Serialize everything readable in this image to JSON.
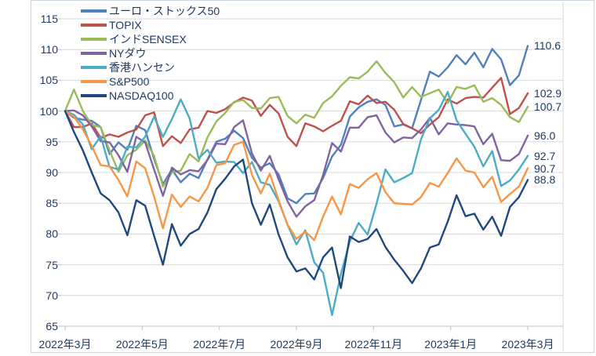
{
  "chart_data": {
    "type": "line",
    "title": "",
    "period": "2022年3月〜2023年3月",
    "index_base": 100,
    "grid": "horizontal",
    "legend_position": "top-left",
    "x_sampling": "weekly (53 points per series, estimated from pixels)",
    "x_axis": {
      "tick_labels": [
        "2022年3月",
        "2022年5月",
        "2022年7月",
        "2022年9月",
        "2022年11月",
        "2023年1月",
        "2023年3月"
      ]
    },
    "y_axis": {
      "min": 65,
      "max": 115,
      "step": 5,
      "tick_labels": [
        "115",
        "110",
        "105",
        "100",
        "95",
        "90",
        "85",
        "80",
        "75",
        "70",
        "65"
      ]
    },
    "series": [
      {
        "name": "ユーロ・ストックス50",
        "color": "#4F81BD",
        "end_label": "110.6",
        "values": [
          100,
          98.9,
          98.6,
          98.4,
          97.4,
          93.0,
          94.9,
          93.7,
          97.6,
          96.9,
          92.2,
          88.1,
          90.5,
          88.4,
          89.8,
          89.1,
          92.1,
          95.0,
          95.5,
          96.8,
          95.6,
          92.4,
          90.8,
          91.5,
          89.7,
          85.8,
          85.0,
          86.5,
          86.6,
          89.1,
          92.6,
          94.5,
          99.1,
          100.6,
          101.5,
          101.9,
          101.0,
          97.5,
          97.8,
          97.2,
          101.8,
          106.4,
          105.6,
          107.1,
          109.1,
          107.6,
          109.5,
          107.1,
          110.1,
          108.4,
          104.2,
          105.8,
          110.6
        ]
      },
      {
        "name": "TOPIX",
        "color": "#C0504D",
        "end_label": "102.9",
        "values": [
          100,
          97.4,
          97.4,
          98.0,
          95.6,
          96.2,
          95.8,
          96.5,
          97.0,
          99.3,
          99.8,
          94.3,
          95.9,
          94.8,
          97.0,
          97.3,
          100.0,
          99.7,
          100.3,
          101.4,
          102.2,
          101.7,
          99.2,
          101.0,
          99.6,
          95.8,
          94.3,
          98.0,
          97.5,
          96.7,
          97.6,
          98.4,
          101.6,
          101.1,
          102.5,
          101.3,
          101.5,
          100.2,
          97.9,
          97.2,
          96.4,
          97.8,
          99.0,
          101.9,
          101.2,
          102.1,
          102.3,
          102.2,
          103.8,
          105.4,
          99.5,
          100.5,
          102.9
        ]
      },
      {
        "name": "インドSENSEX",
        "color": "#9BBB59",
        "end_label": "100.7",
        "values": [
          100,
          103.5,
          100.0,
          97.7,
          97.4,
          93.6,
          90.1,
          92.8,
          93.7,
          95.2,
          92.7,
          87.7,
          90.0,
          90.3,
          93.0,
          91.8,
          95.7,
          98.3,
          99.7,
          101.5,
          101.8,
          100.5,
          100.4,
          102.1,
          102.3,
          99.2,
          98.0,
          99.4,
          98.9,
          101.3,
          102.4,
          104.1,
          105.5,
          105.3,
          106.4,
          108.1,
          106.2,
          104.7,
          102.2,
          103.9,
          102.3,
          102.9,
          103.5,
          101.3,
          103.9,
          103.6,
          104.2,
          101.5,
          102.1,
          101.0,
          99.0,
          98.2,
          100.7
        ]
      },
      {
        "name": "NYダウ",
        "color": "#8064A2",
        "end_label": "96.0",
        "values": [
          100,
          100.1,
          99.3,
          97.5,
          95.1,
          94.9,
          92.8,
          90.1,
          95.8,
          94.9,
          90.5,
          86.2,
          90.8,
          89.7,
          90.4,
          90.2,
          92.0,
          94.7,
          94.6,
          97.4,
          98.5,
          93.1,
          90.3,
          92.7,
          88.9,
          85.3,
          82.8,
          84.5,
          85.5,
          89.6,
          94.8,
          93.4,
          97.3,
          97.3,
          99.0,
          99.3,
          96.5,
          94.9,
          95.7,
          95.6,
          97.0,
          98.9,
          96.2,
          98.0,
          97.8,
          97.7,
          97.5,
          94.6,
          96.3,
          92.0,
          91.9,
          93.0,
          96.0
        ]
      },
      {
        "name": "香港ハンセン",
        "color": "#4BACC6",
        "end_label": "92.7",
        "values": [
          100,
          99.4,
          97.8,
          93.8,
          95.9,
          90.9,
          90.5,
          94.2,
          94.1,
          95.8,
          99.1,
          95.8,
          98.7,
          101.9,
          98.8,
          92.3,
          93.7,
          91.6,
          91.8,
          91.7,
          89.9,
          91.7,
          88.4,
          88.0,
          85.3,
          81.5,
          78.3,
          80.6,
          75.4,
          73.7,
          66.8,
          73.5,
          78.8,
          81.8,
          79.9,
          84.9,
          90.5,
          88.4,
          89.1,
          89.9,
          95.4,
          98.8,
          100.2,
          103.1,
          98.5,
          96.3,
          94.2,
          91.0,
          93.5,
          87.8,
          88.7,
          90.5,
          92.7
        ]
      },
      {
        "name": "S&P500",
        "color": "#F79646",
        "end_label": "90.7",
        "values": [
          100,
          99.1,
          97.0,
          94.3,
          91.2,
          91.0,
          88.8,
          86.1,
          91.8,
          90.7,
          86.1,
          80.9,
          86.4,
          84.4,
          86.1,
          85.3,
          87.5,
          91.2,
          91.5,
          94.5,
          95.0,
          89.6,
          86.6,
          89.8,
          85.5,
          81.5,
          79.2,
          80.4,
          79.0,
          82.8,
          86.1,
          83.2,
          88.1,
          87.5,
          88.9,
          89.9,
          86.8,
          85.0,
          84.9,
          84.8,
          86.0,
          88.3,
          87.7,
          89.9,
          92.3,
          90.3,
          90.0,
          87.6,
          89.3,
          85.2,
          86.5,
          87.7,
          90.7
        ]
      },
      {
        "name": "NASDAQ100",
        "color": "#1F497D",
        "end_label": "88.8",
        "values": [
          100,
          96.6,
          93.6,
          90.0,
          86.6,
          85.5,
          83.5,
          79.8,
          85.5,
          84.6,
          79.7,
          75.0,
          81.6,
          78.1,
          80.0,
          80.8,
          83.5,
          87.3,
          89.0,
          91.0,
          92.1,
          85.0,
          81.5,
          84.8,
          79.9,
          76.2,
          73.9,
          74.4,
          72.6,
          76.2,
          77.8,
          71.2,
          79.6,
          78.7,
          79.2,
          80.8,
          77.9,
          75.8,
          74.0,
          72.0,
          74.4,
          77.8,
          78.3,
          82.0,
          86.3,
          82.9,
          83.3,
          80.7,
          82.8,
          79.7,
          84.4,
          86.0,
          88.8
        ]
      }
    ]
  },
  "colors": {
    "text": "#203a60",
    "grid": "#d9d9d9",
    "axis": "#bfbfbf",
    "frame": "#c9d6e6",
    "background": "#ffffff"
  }
}
